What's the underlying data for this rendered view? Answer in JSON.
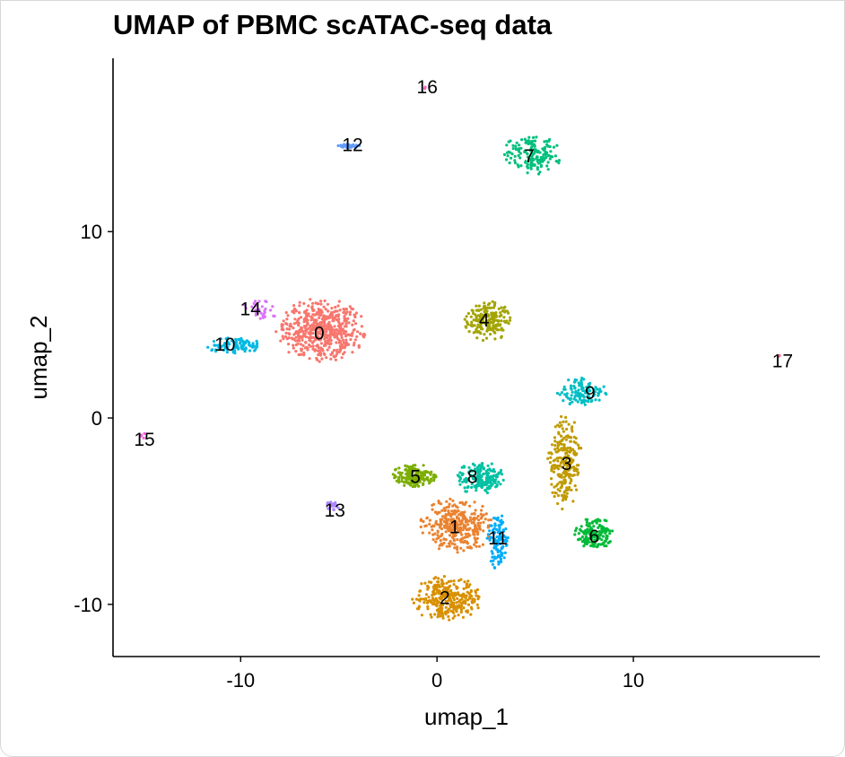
{
  "chart_data": {
    "type": "scatter",
    "title": "UMAP of PBMC scATAC-seq data",
    "xlabel": "umap_1",
    "ylabel": "umap_2",
    "xlim": [
      -16.5,
      19.5
    ],
    "ylim": [
      -12.8,
      19.3
    ],
    "xticks": [
      -10,
      0,
      10
    ],
    "yticks": [
      -10,
      0,
      10
    ],
    "grid": false,
    "legend": "none",
    "clusters": [
      {
        "label": "0",
        "color": "#F8766D",
        "center": [
          -5.9,
          4.7
        ],
        "spread": [
          2.1,
          1.6
        ],
        "n": 520
      },
      {
        "label": "1",
        "color": "#EA8331",
        "center": [
          1.0,
          -5.8
        ],
        "spread": [
          1.7,
          1.4
        ],
        "n": 330
      },
      {
        "label": "2",
        "color": "#D89000",
        "center": [
          0.5,
          -9.7
        ],
        "spread": [
          1.7,
          1.1
        ],
        "n": 300
      },
      {
        "label": "3",
        "color": "#C09B00",
        "center": [
          6.5,
          -2.4
        ],
        "spread": [
          0.8,
          2.4
        ],
        "n": 240
      },
      {
        "label": "4",
        "color": "#A3A500",
        "center": [
          2.6,
          5.2
        ],
        "spread": [
          1.1,
          1.0
        ],
        "n": 200
      },
      {
        "label": "5",
        "color": "#7CAE00",
        "center": [
          -1.1,
          -3.1
        ],
        "spread": [
          1.1,
          0.6
        ],
        "n": 170
      },
      {
        "label": "6",
        "color": "#00BA38",
        "center": [
          8.0,
          -6.2
        ],
        "spread": [
          0.9,
          0.8
        ],
        "n": 160
      },
      {
        "label": "7",
        "color": "#00BF7D",
        "center": [
          4.8,
          14.1
        ],
        "spread": [
          1.4,
          1.0
        ],
        "n": 160
      },
      {
        "label": "8",
        "color": "#00C1A3",
        "center": [
          2.2,
          -3.2
        ],
        "spread": [
          1.1,
          0.9
        ],
        "n": 170
      },
      {
        "label": "9",
        "color": "#00BFC4",
        "center": [
          7.4,
          1.4
        ],
        "spread": [
          1.2,
          0.7
        ],
        "n": 110
      },
      {
        "label": "10",
        "color": "#00B9E3",
        "center": [
          -10.3,
          3.9
        ],
        "spread": [
          1.4,
          0.4
        ],
        "n": 100
      },
      {
        "label": "11",
        "color": "#00ADFA",
        "center": [
          3.1,
          -6.6
        ],
        "spread": [
          0.5,
          1.4
        ],
        "n": 110
      },
      {
        "label": "12",
        "color": "#619CFF",
        "center": [
          -4.4,
          14.6
        ],
        "spread": [
          0.6,
          0.1
        ],
        "n": 40
      },
      {
        "label": "13",
        "color": "#AE87FF",
        "center": [
          -5.3,
          -4.7
        ],
        "spread": [
          0.3,
          0.3
        ],
        "n": 20
      },
      {
        "label": "14",
        "color": "#DB72FB",
        "center": [
          -9.0,
          5.8
        ],
        "spread": [
          0.9,
          0.5
        ],
        "n": 30
      },
      {
        "label": "15",
        "color": "#F564E3",
        "center": [
          -15.0,
          -1.0
        ],
        "spread": [
          0.2,
          0.2
        ],
        "n": 4
      },
      {
        "label": "16",
        "color": "#FF61C3",
        "center": [
          -0.6,
          17.7
        ],
        "spread": [
          0.1,
          0.1
        ],
        "n": 3
      },
      {
        "label": "17",
        "color": "#FF6C91",
        "center": [
          17.4,
          3.3
        ],
        "spread": [
          0.1,
          0.1
        ],
        "n": 2
      }
    ],
    "labels": [
      {
        "text": "0",
        "x": -6.0,
        "y": 4.6
      },
      {
        "text": "1",
        "x": 0.9,
        "y": -5.8
      },
      {
        "text": "2",
        "x": 0.4,
        "y": -9.6
      },
      {
        "text": "3",
        "x": 6.6,
        "y": -2.4
      },
      {
        "text": "4",
        "x": 2.4,
        "y": 5.3
      },
      {
        "text": "5",
        "x": -1.1,
        "y": -3.1
      },
      {
        "text": "6",
        "x": 8.0,
        "y": -6.3
      },
      {
        "text": "7",
        "x": 4.7,
        "y": 14.1
      },
      {
        "text": "8",
        "x": 1.8,
        "y": -3.1
      },
      {
        "text": "9",
        "x": 7.8,
        "y": 1.4
      },
      {
        "text": "10",
        "x": -10.8,
        "y": 4.0
      },
      {
        "text": "11",
        "x": 3.1,
        "y": -6.4
      },
      {
        "text": "12",
        "x": -4.3,
        "y": 14.7
      },
      {
        "text": "13",
        "x": -5.2,
        "y": -4.9
      },
      {
        "text": "14",
        "x": -9.5,
        "y": 5.9
      },
      {
        "text": "15",
        "x": -14.9,
        "y": -1.1
      },
      {
        "text": "16",
        "x": -0.5,
        "y": 17.8
      },
      {
        "text": "17",
        "x": 17.6,
        "y": 3.1
      }
    ]
  }
}
